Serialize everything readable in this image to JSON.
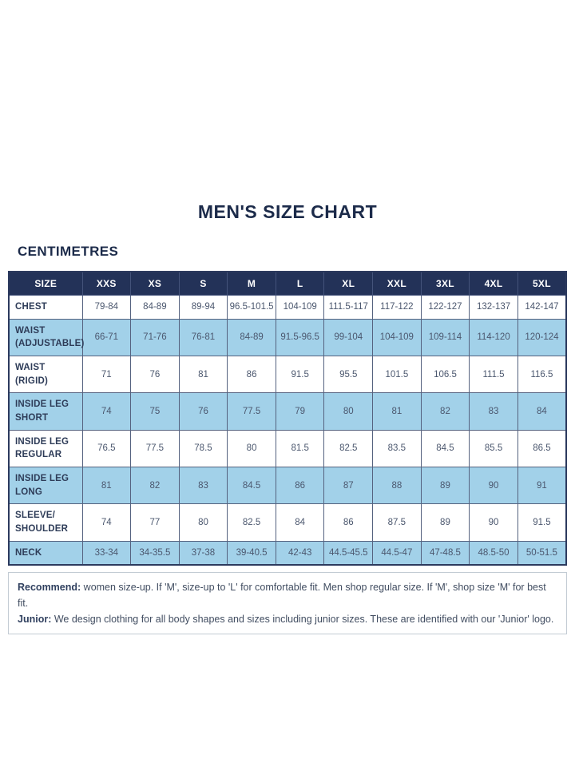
{
  "page": {
    "title": "MEN'S SIZE CHART",
    "unit_label": "CENTIMETRES"
  },
  "table": {
    "columns": [
      "SIZE",
      "XXS",
      "XS",
      "S",
      "M",
      "L",
      "XL",
      "XXL",
      "3XL",
      "4XL",
      "5XL"
    ],
    "rows": [
      {
        "label": "CHEST",
        "values": [
          "79-84",
          "84-89",
          "89-94",
          "96.5-101.5",
          "104-109",
          "111.5-117",
          "117-122",
          "122-127",
          "132-137",
          "142-147"
        ]
      },
      {
        "label": "WAIST (ADJUSTABLE)",
        "values": [
          "66-71",
          "71-76",
          "76-81",
          "84-89",
          "91.5-96.5",
          "99-104",
          "104-109",
          "109-114",
          "114-120",
          "120-124"
        ]
      },
      {
        "label": "WAIST (RIGID)",
        "values": [
          "71",
          "76",
          "81",
          "86",
          "91.5",
          "95.5",
          "101.5",
          "106.5",
          "111.5",
          "116.5"
        ]
      },
      {
        "label": "INSIDE LEG SHORT",
        "values": [
          "74",
          "75",
          "76",
          "77.5",
          "79",
          "80",
          "81",
          "82",
          "83",
          "84"
        ]
      },
      {
        "label": "INSIDE LEG REGULAR",
        "values": [
          "76.5",
          "77.5",
          "78.5",
          "80",
          "81.5",
          "82.5",
          "83.5",
          "84.5",
          "85.5",
          "86.5"
        ]
      },
      {
        "label": "INSIDE LEG LONG",
        "values": [
          "81",
          "82",
          "83",
          "84.5",
          "86",
          "87",
          "88",
          "89",
          "90",
          "91"
        ]
      },
      {
        "label": "SLEEVE/ SHOULDER",
        "values": [
          "74",
          "77",
          "80",
          "82.5",
          "84",
          "86",
          "87.5",
          "89",
          "90",
          "91.5"
        ]
      },
      {
        "label": "NECK",
        "values": [
          "33-34",
          "34-35.5",
          "37-38",
          "39-40.5",
          "42-43",
          "44.5-45.5",
          "44.5-47",
          "47-48.5",
          "48.5-50",
          "50-51.5"
        ]
      }
    ]
  },
  "footer": {
    "recommend_label": "Recommend:",
    "recommend_text": " women size-up. If 'M', size-up to 'L' for comfortable fit. Men shop regular size. If 'M', shop size 'M' for best fit.",
    "junior_label": "Junior:",
    "junior_text": " We design clothing for all body shapes and sizes including junior sizes. These are identified with our 'Junior' logo."
  },
  "colors": {
    "title_text": "#1c2b4a",
    "header_bg": "#233258",
    "header_text": "#ffffff",
    "alt_row_bg": "#a2d1e9",
    "cell_text": "#4b576e",
    "table_border": "#2c3a5e"
  }
}
